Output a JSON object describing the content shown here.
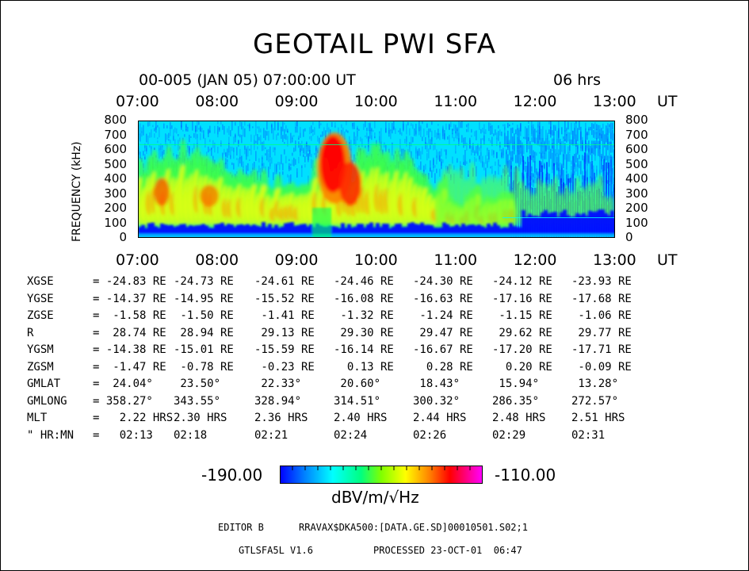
{
  "chart_data": {
    "type": "heatmap",
    "title": "GEOTAIL PWI SFA",
    "subtitle_left": "00-005 (JAN 05) 07:00:00 UT",
    "subtitle_right": "06 hrs",
    "ylabel": "FREQUENCY (kHz)",
    "x_unit": "UT",
    "x_ticks": [
      "07:00",
      "08:00",
      "09:00",
      "10:00",
      "11:00",
      "12:00",
      "13:00"
    ],
    "y_ticks": [
      0,
      100,
      200,
      300,
      400,
      500,
      600,
      700,
      800
    ],
    "xlim": [
      "07:00",
      "13:00"
    ],
    "ylim": [
      0,
      800
    ],
    "colorbar": {
      "min": "-190.00",
      "max": "-110.00",
      "label": "dBV/m/√Hz"
    }
  },
  "colors": {
    "scale": [
      "#0000ff",
      "#0080ff",
      "#00ffff",
      "#00ff80",
      "#ffff00",
      "#ff8000",
      "#ff0000",
      "#ff00ff"
    ]
  },
  "ephemeris": {
    "rows": [
      {
        "label": "XGSE",
        "values": [
          "= -24.83 RE",
          "-24.73 RE",
          "-24.61 RE",
          "-24.46 RE",
          "-24.30 RE",
          "-24.12 RE",
          "-23.93 RE"
        ]
      },
      {
        "label": "YGSE",
        "values": [
          "= -14.37 RE",
          "-14.95 RE",
          "-15.52 RE",
          "-16.08 RE",
          "-16.63 RE",
          "-17.16 RE",
          "-17.68 RE"
        ]
      },
      {
        "label": "ZGSE",
        "values": [
          "=  -1.58 RE",
          " -1.50 RE",
          " -1.41 RE",
          " -1.32 RE",
          " -1.24 RE",
          " -1.15 RE",
          " -1.06 RE"
        ]
      },
      {
        "label": "R",
        "values": [
          "=  28.74 RE",
          " 28.94 RE",
          " 29.13 RE",
          " 29.30 RE",
          " 29.47 RE",
          " 29.62 RE",
          " 29.77 RE"
        ]
      },
      {
        "label": "YGSM",
        "values": [
          "= -14.38 RE",
          "-15.01 RE",
          "-15.59 RE",
          "-16.14 RE",
          "-16.67 RE",
          "-17.20 RE",
          "-17.71 RE"
        ]
      },
      {
        "label": "ZGSM",
        "values": [
          "=  -1.47 RE",
          " -0.78 RE",
          " -0.23 RE",
          "  0.13 RE",
          "  0.28 RE",
          "  0.20 RE",
          " -0.09 RE"
        ]
      },
      {
        "label": "GMLAT",
        "values": [
          "=  24.04°",
          " 23.50°",
          " 22.33°",
          " 20.60°",
          " 18.43°",
          " 15.94°",
          " 13.28°"
        ]
      },
      {
        "label": "GMLONG",
        "values": [
          "= 358.27°",
          "343.55°",
          "328.94°",
          "314.51°",
          "300.32°",
          "286.35°",
          "272.57°"
        ]
      },
      {
        "label": "MLT",
        "values": [
          "=   2.22 HRS",
          "2.30 HRS",
          "2.36 HRS",
          "2.40 HRS",
          "2.44 HRS",
          "2.48 HRS",
          "2.51 HRS"
        ]
      },
      {
        "label": "\" HR:MN",
        "values": [
          "=   02:13",
          "02:18",
          "02:21",
          "02:24",
          "02:26",
          "02:29",
          "02:31"
        ]
      }
    ]
  },
  "footer": {
    "editor_label": "EDITOR B",
    "file_path": "RRAVAX$DKA500:[DATA.GE.SD]00010501.S02;1",
    "version": "GTLSFA5L V1.6",
    "processed": "PROCESSED 23-OCT-01  06:47"
  }
}
